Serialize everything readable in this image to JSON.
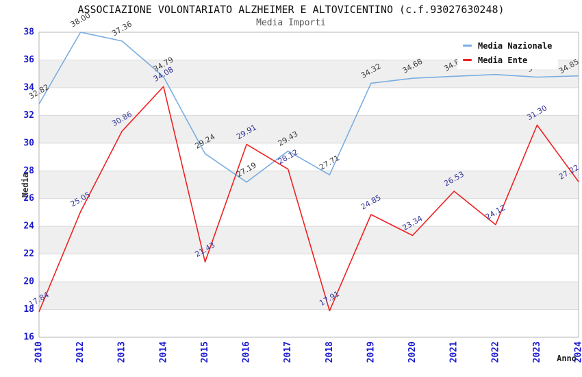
{
  "chart_data": {
    "type": "line",
    "title": "ASSOCIAZIONE VOLONTARIATO ALZHEIMER E ALTOVICENTINO (c.f.93027630248)",
    "subtitle": "Media Importi",
    "xlabel": "Anno",
    "ylabel": "Media",
    "ylim": [
      16,
      38
    ],
    "ytick_step": 2,
    "yticks": [
      16,
      18,
      20,
      22,
      24,
      26,
      28,
      30,
      32,
      34,
      36,
      38
    ],
    "grid": "horizontal alternating bands",
    "legend_position": "top-right",
    "legend_covers_labels_of_years": [
      "2022",
      "2023"
    ],
    "categories": [
      "2010",
      "2012",
      "2013",
      "2014",
      "2015",
      "2016",
      "2017",
      "2018",
      "2019",
      "2020",
      "2021",
      "2022",
      "2023",
      "2024"
    ],
    "series": [
      {
        "name": "Media Nazionale",
        "color": "#7aaee0",
        "label_color": "#3d3d3d",
        "values": [
          32.82,
          38.0,
          37.36,
          34.79,
          29.24,
          27.19,
          29.43,
          27.71,
          34.32,
          34.68,
          34.82,
          34.95,
          34.76,
          34.85
        ],
        "hidden_label_indexes": [
          11,
          12
        ]
      },
      {
        "name": "Media Ente",
        "color": "#ee2222",
        "label_color": "#333399",
        "values": [
          17.84,
          25.05,
          30.86,
          34.08,
          21.43,
          29.91,
          28.12,
          17.91,
          24.85,
          23.34,
          26.53,
          24.12,
          31.3,
          27.22
        ],
        "hidden_label_indexes": []
      }
    ],
    "colors": {
      "tick_label": "#1a1acd",
      "band": "#efefef",
      "grid": "#d9d9d9",
      "frame": "#b5b5b5",
      "background": "#ffffff"
    }
  }
}
